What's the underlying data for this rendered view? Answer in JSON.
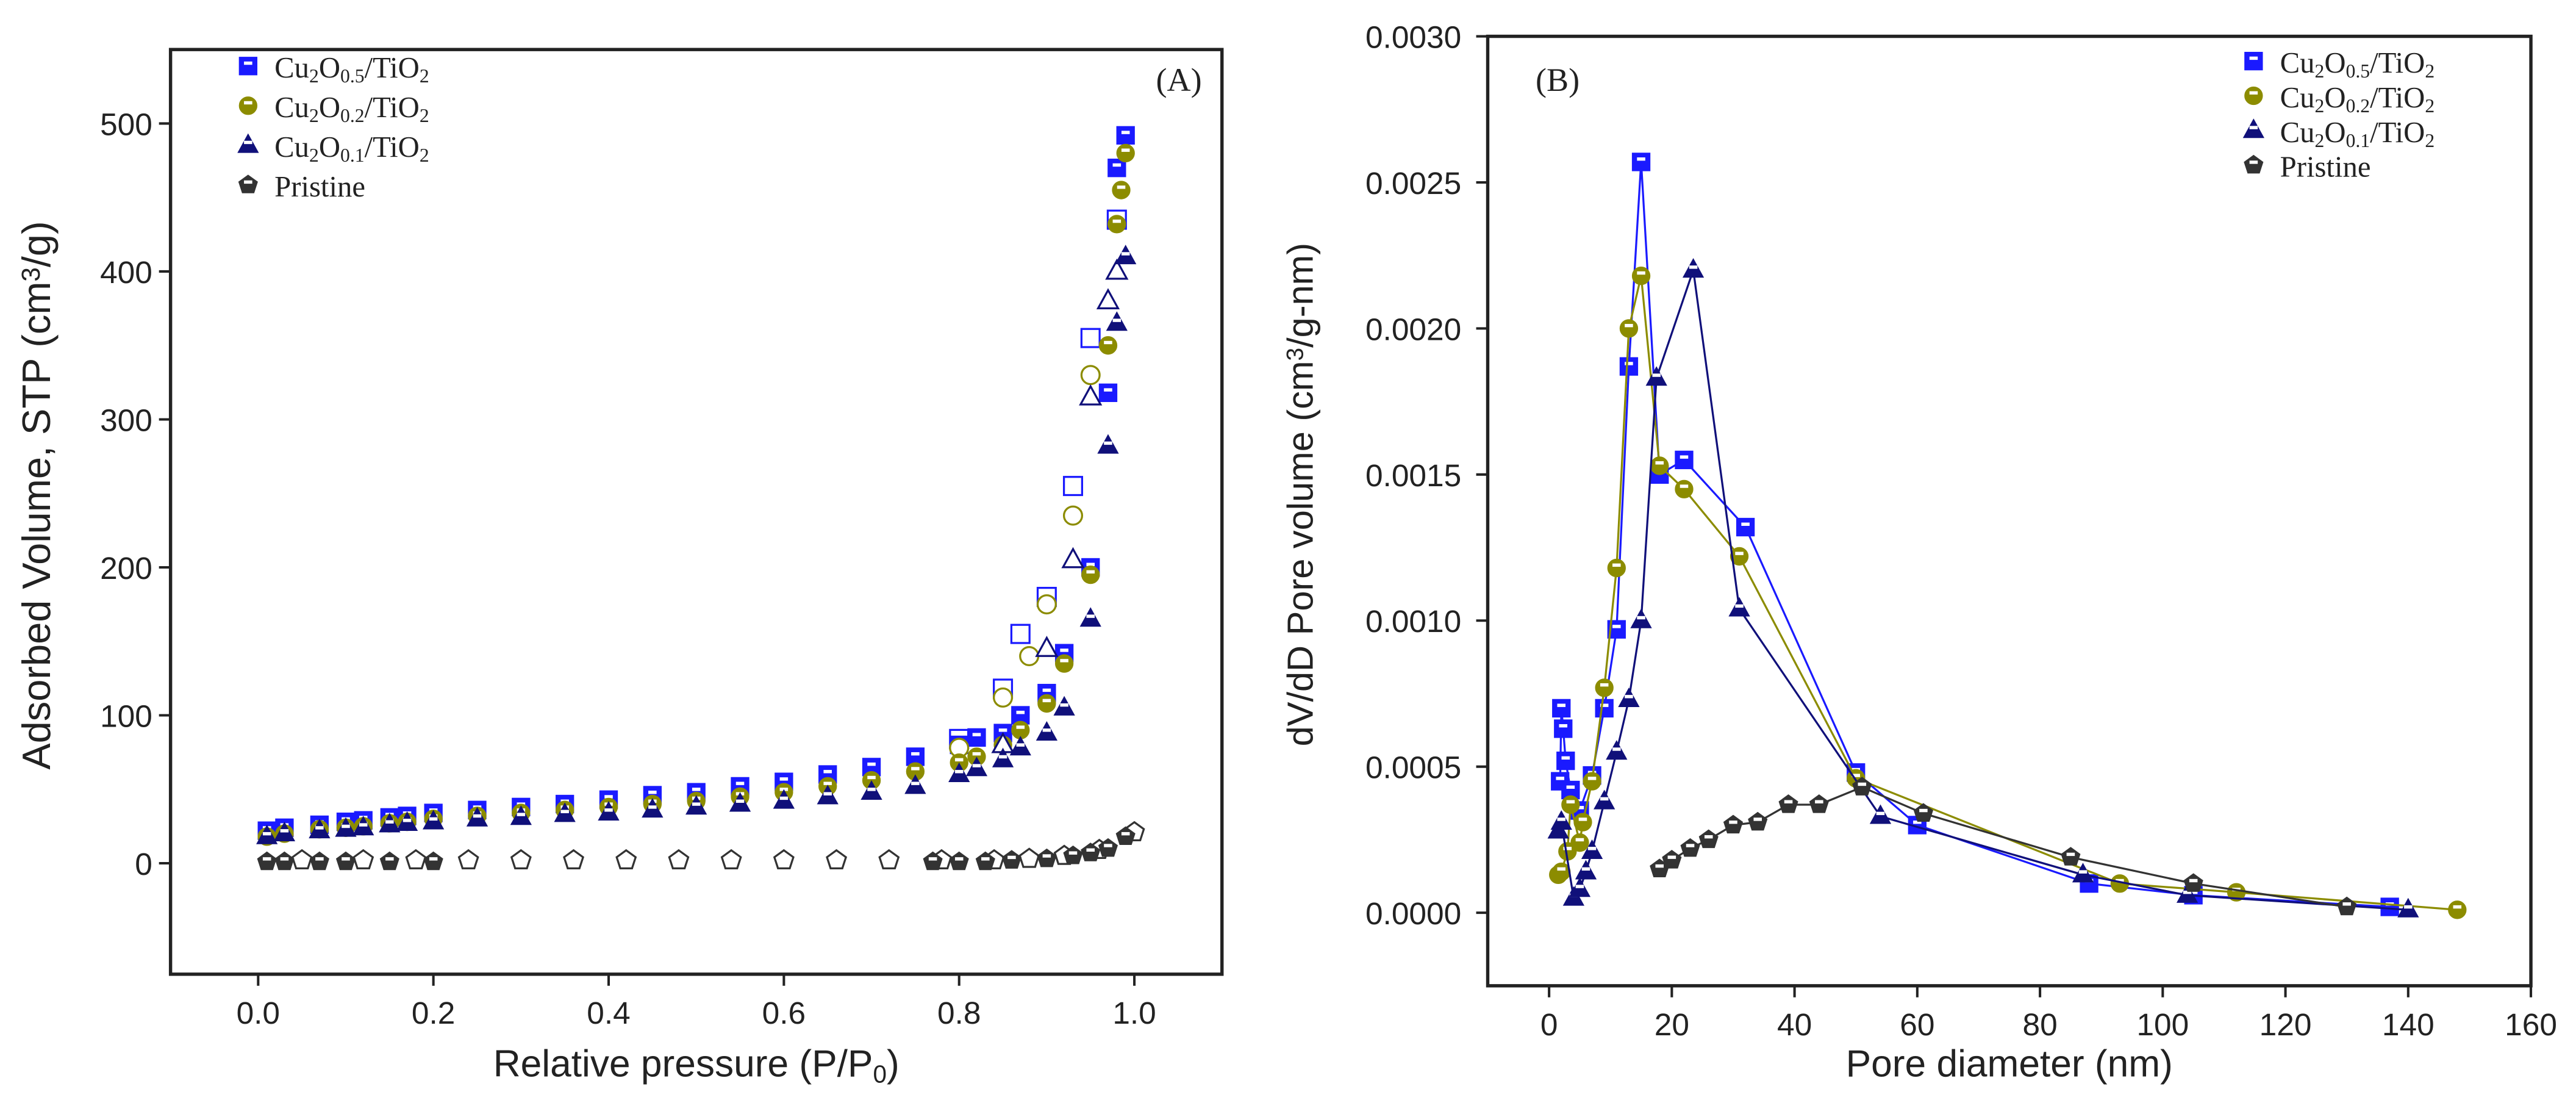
{
  "chart_data": [
    {
      "type": "scatter",
      "panel_label": "(A)",
      "xlabel": [
        [
          "Relative pressure (P/P",
          ""
        ],
        [
          "0",
          "sub"
        ],
        [
          ")",
          ""
        ]
      ],
      "ylabel": [
        [
          "Adsorbed Volume, STP (cm",
          ""
        ],
        [
          "3",
          "sup"
        ],
        [
          "/g)",
          ""
        ]
      ],
      "xlim": [
        -0.1,
        1.1
      ],
      "ylim": [
        -75,
        550
      ],
      "xticks": [
        0.0,
        0.2,
        0.4,
        0.6,
        0.8,
        1.0
      ],
      "xtick_labels": [
        "0.0",
        "0.2",
        "0.4",
        "0.6",
        "0.8",
        "1.0"
      ],
      "yticks": [
        0,
        100,
        200,
        300,
        400,
        500
      ],
      "ytick_labels": [
        "0",
        "100",
        "200",
        "300",
        "400",
        "500"
      ],
      "legend_position": "top-left",
      "series": [
        {
          "name": [
            [
              "Cu",
              ""
            ],
            [
              "2",
              "sub"
            ],
            [
              "O",
              ""
            ],
            [
              "0.5",
              "sub"
            ],
            [
              "/TiO",
              ""
            ],
            [
              "2",
              "sub"
            ]
          ],
          "marker": "square",
          "color": "#1a1aff",
          "adsorption": [
            [
              0.01,
              22
            ],
            [
              0.03,
              24
            ],
            [
              0.07,
              26
            ],
            [
              0.1,
              28
            ],
            [
              0.12,
              29
            ],
            [
              0.15,
              31
            ],
            [
              0.17,
              32
            ],
            [
              0.2,
              34
            ],
            [
              0.25,
              36
            ],
            [
              0.3,
              38
            ],
            [
              0.35,
              40
            ],
            [
              0.4,
              43
            ],
            [
              0.45,
              46
            ],
            [
              0.5,
              48
            ],
            [
              0.55,
              52
            ],
            [
              0.6,
              55
            ],
            [
              0.65,
              60
            ],
            [
              0.7,
              65
            ],
            [
              0.75,
              72
            ],
            [
              0.8,
              80
            ],
            [
              0.82,
              85
            ],
            [
              0.85,
              88
            ],
            [
              0.87,
              100
            ],
            [
              0.9,
              115
            ],
            [
              0.92,
              142
            ],
            [
              0.95,
              200
            ],
            [
              0.97,
              318
            ],
            [
              0.98,
              470
            ],
            [
              0.99,
              492
            ]
          ],
          "desorption": [
            [
              0.8,
              84
            ],
            [
              0.85,
              118
            ],
            [
              0.87,
              155
            ],
            [
              0.9,
              180
            ],
            [
              0.93,
              255
            ],
            [
              0.95,
              355
            ],
            [
              0.98,
              435
            ]
          ]
        },
        {
          "name": [
            [
              "Cu",
              ""
            ],
            [
              "2",
              "sub"
            ],
            [
              "O",
              ""
            ],
            [
              "0.2",
              "sub"
            ],
            [
              "/TiO",
              ""
            ],
            [
              "2",
              "sub"
            ]
          ],
          "marker": "circle",
          "color": "#8c8c00",
          "adsorption": [
            [
              0.01,
              18
            ],
            [
              0.03,
              20
            ],
            [
              0.07,
              23
            ],
            [
              0.1,
              24
            ],
            [
              0.12,
              25
            ],
            [
              0.15,
              27
            ],
            [
              0.17,
              28
            ],
            [
              0.2,
              30
            ],
            [
              0.25,
              32
            ],
            [
              0.3,
              34
            ],
            [
              0.35,
              36
            ],
            [
              0.4,
              38
            ],
            [
              0.45,
              40
            ],
            [
              0.5,
              42
            ],
            [
              0.55,
              45
            ],
            [
              0.6,
              48
            ],
            [
              0.65,
              52
            ],
            [
              0.7,
              56
            ],
            [
              0.75,
              62
            ],
            [
              0.8,
              68
            ],
            [
              0.82,
              72
            ],
            [
              0.85,
              80
            ],
            [
              0.87,
              90
            ],
            [
              0.9,
              108
            ],
            [
              0.92,
              135
            ],
            [
              0.95,
              195
            ],
            [
              0.97,
              350
            ],
            [
              0.98,
              432
            ],
            [
              0.985,
              455
            ],
            [
              0.99,
              480
            ]
          ],
          "desorption": [
            [
              0.8,
              78
            ],
            [
              0.85,
              112
            ],
            [
              0.88,
              140
            ],
            [
              0.9,
              175
            ],
            [
              0.93,
              235
            ],
            [
              0.95,
              330
            ]
          ]
        },
        {
          "name": [
            [
              "Cu",
              ""
            ],
            [
              "2",
              "sub"
            ],
            [
              "O",
              ""
            ],
            [
              "0.1",
              "sub"
            ],
            [
              "/TiO",
              ""
            ],
            [
              "2",
              "sub"
            ]
          ],
          "marker": "triangle",
          "color": "#10107a",
          "adsorption": [
            [
              0.01,
              18
            ],
            [
              0.03,
              20
            ],
            [
              0.07,
              22
            ],
            [
              0.1,
              23
            ],
            [
              0.12,
              24
            ],
            [
              0.15,
              26
            ],
            [
              0.17,
              27
            ],
            [
              0.2,
              28
            ],
            [
              0.25,
              30
            ],
            [
              0.3,
              31
            ],
            [
              0.35,
              33
            ],
            [
              0.4,
              34
            ],
            [
              0.45,
              36
            ],
            [
              0.5,
              38
            ],
            [
              0.55,
              40
            ],
            [
              0.6,
              42
            ],
            [
              0.65,
              45
            ],
            [
              0.7,
              48
            ],
            [
              0.75,
              52
            ],
            [
              0.8,
              60
            ],
            [
              0.82,
              64
            ],
            [
              0.85,
              70
            ],
            [
              0.87,
              78
            ],
            [
              0.9,
              88
            ],
            [
              0.92,
              105
            ],
            [
              0.95,
              165
            ],
            [
              0.97,
              282
            ],
            [
              0.98,
              365
            ],
            [
              0.99,
              410
            ]
          ],
          "desorption": [
            [
              0.85,
              80
            ],
            [
              0.9,
              145
            ],
            [
              0.93,
              205
            ],
            [
              0.95,
              315
            ],
            [
              0.97,
              380
            ],
            [
              0.98,
              400
            ]
          ]
        },
        {
          "name": [
            [
              "Pristine",
              ""
            ]
          ],
          "marker": "pentagon",
          "color": "#333333",
          "adsorption": [
            [
              0.01,
              1
            ],
            [
              0.03,
              1
            ],
            [
              0.07,
              1
            ],
            [
              0.1,
              1
            ],
            [
              0.15,
              1
            ],
            [
              0.2,
              1
            ],
            [
              0.77,
              1
            ],
            [
              0.8,
              1
            ],
            [
              0.83,
              1
            ],
            [
              0.86,
              2
            ],
            [
              0.9,
              3
            ],
            [
              0.93,
              5
            ],
            [
              0.95,
              7
            ],
            [
              0.97,
              10
            ],
            [
              0.99,
              18
            ]
          ],
          "desorption": [
            [
              0.05,
              2
            ],
            [
              0.12,
              2
            ],
            [
              0.18,
              2
            ],
            [
              0.24,
              2
            ],
            [
              0.3,
              2
            ],
            [
              0.36,
              2
            ],
            [
              0.42,
              2
            ],
            [
              0.48,
              2
            ],
            [
              0.54,
              2
            ],
            [
              0.6,
              2
            ],
            [
              0.66,
              2
            ],
            [
              0.72,
              2
            ],
            [
              0.78,
              2
            ],
            [
              0.84,
              2
            ],
            [
              0.88,
              3
            ],
            [
              0.92,
              5
            ],
            [
              0.96,
              9
            ],
            [
              1.0,
              21
            ]
          ]
        }
      ]
    },
    {
      "type": "line",
      "panel_label": "(B)",
      "xlabel": [
        [
          "Pore diameter (nm)",
          ""
        ]
      ],
      "ylabel": [
        [
          "dV/dD Pore volume (cm",
          ""
        ],
        [
          "3",
          "sup"
        ],
        [
          "/g-nm)",
          ""
        ]
      ],
      "xlim": [
        -10,
        160
      ],
      "ylim": [
        -0.00025,
        0.003
      ],
      "xticks": [
        0,
        20,
        40,
        60,
        80,
        100,
        120,
        140,
        160
      ],
      "xtick_labels": [
        "0",
        "20",
        "40",
        "60",
        "80",
        "100",
        "120",
        "140",
        "160"
      ],
      "yticks": [
        0,
        0.0005,
        0.001,
        0.0015,
        0.002,
        0.0025,
        0.003
      ],
      "ytick_labels": [
        "0.0000",
        "0.0005",
        "0.0010",
        "0.0015",
        "0.0020",
        "0.0025",
        "0.0030"
      ],
      "legend_position": "top-right",
      "series": [
        {
          "name": [
            [
              "Cu",
              ""
            ],
            [
              "2",
              "sub"
            ],
            [
              "O",
              ""
            ],
            [
              "0.5",
              "sub"
            ],
            [
              "/TiO",
              ""
            ],
            [
              "2",
              "sub"
            ]
          ],
          "marker": "square",
          "color": "#1a1aff",
          "points": [
            [
              1.8,
              0.00045
            ],
            [
              2,
              0.0007
            ],
            [
              2.3,
              0.00063
            ],
            [
              2.7,
              0.00052
            ],
            [
              3.5,
              0.00042
            ],
            [
              5,
              0.00035
            ],
            [
              7,
              0.00047
            ],
            [
              9,
              0.0007
            ],
            [
              11,
              0.00097
            ],
            [
              13,
              0.00187
            ],
            [
              15,
              0.00257
            ],
            [
              18,
              0.0015
            ],
            [
              22,
              0.00155
            ],
            [
              32,
              0.00132
            ],
            [
              50,
              0.00048
            ],
            [
              60,
              0.0003
            ],
            [
              88,
              0.0001
            ],
            [
              105,
              6e-05
            ],
            [
              137,
              2e-05
            ]
          ]
        },
        {
          "name": [
            [
              "Cu",
              ""
            ],
            [
              "2",
              "sub"
            ],
            [
              "O",
              ""
            ],
            [
              "0.2",
              "sub"
            ],
            [
              "/TiO",
              ""
            ],
            [
              "2",
              "sub"
            ]
          ],
          "marker": "circle",
          "color": "#8c8c00",
          "points": [
            [
              1.5,
              0.00013
            ],
            [
              2,
              0.00014
            ],
            [
              3,
              0.00021
            ],
            [
              3.5,
              0.00037
            ],
            [
              5,
              0.00024
            ],
            [
              5.5,
              0.00031
            ],
            [
              7,
              0.00045
            ],
            [
              9,
              0.00077
            ],
            [
              11,
              0.00118
            ],
            [
              13,
              0.002
            ],
            [
              15,
              0.00218
            ],
            [
              18,
              0.00153
            ],
            [
              22,
              0.00145
            ],
            [
              31,
              0.00122
            ],
            [
              50,
              0.00046
            ],
            [
              93,
              0.0001
            ],
            [
              112,
              7e-05
            ],
            [
              148,
              1e-05
            ]
          ]
        },
        {
          "name": [
            [
              "Cu",
              ""
            ],
            [
              "2",
              "sub"
            ],
            [
              "O",
              ""
            ],
            [
              "0.1",
              "sub"
            ],
            [
              "/TiO",
              ""
            ],
            [
              "2",
              "sub"
            ]
          ],
          "marker": "triangle",
          "color": "#10107a",
          "points": [
            [
              1.5,
              0.00028
            ],
            [
              2,
              0.00031
            ],
            [
              4,
              5e-05
            ],
            [
              5,
              8e-05
            ],
            [
              6,
              0.00014
            ],
            [
              7,
              0.00021
            ],
            [
              9,
              0.00038
            ],
            [
              11,
              0.00055
            ],
            [
              13,
              0.00073
            ],
            [
              15,
              0.001
            ],
            [
              17.5,
              0.00183
            ],
            [
              23.5,
              0.0022
            ],
            [
              31,
              0.00104
            ],
            [
              54,
              0.00033
            ],
            [
              87,
              0.00013
            ],
            [
              104,
              6e-05
            ],
            [
              140,
              1e-05
            ]
          ]
        },
        {
          "name": [
            [
              "Pristine",
              ""
            ]
          ],
          "marker": "pentagon",
          "color": "#333333",
          "points": [
            [
              18,
              0.00015
            ],
            [
              20,
              0.00018
            ],
            [
              23,
              0.00022
            ],
            [
              26,
              0.00025
            ],
            [
              30,
              0.0003
            ],
            [
              34,
              0.00031
            ],
            [
              39,
              0.00037
            ],
            [
              44,
              0.00037
            ],
            [
              51,
              0.00043
            ],
            [
              61,
              0.00034
            ],
            [
              85,
              0.00019
            ],
            [
              105,
              0.0001
            ],
            [
              130,
              2e-05
            ]
          ]
        }
      ]
    }
  ]
}
